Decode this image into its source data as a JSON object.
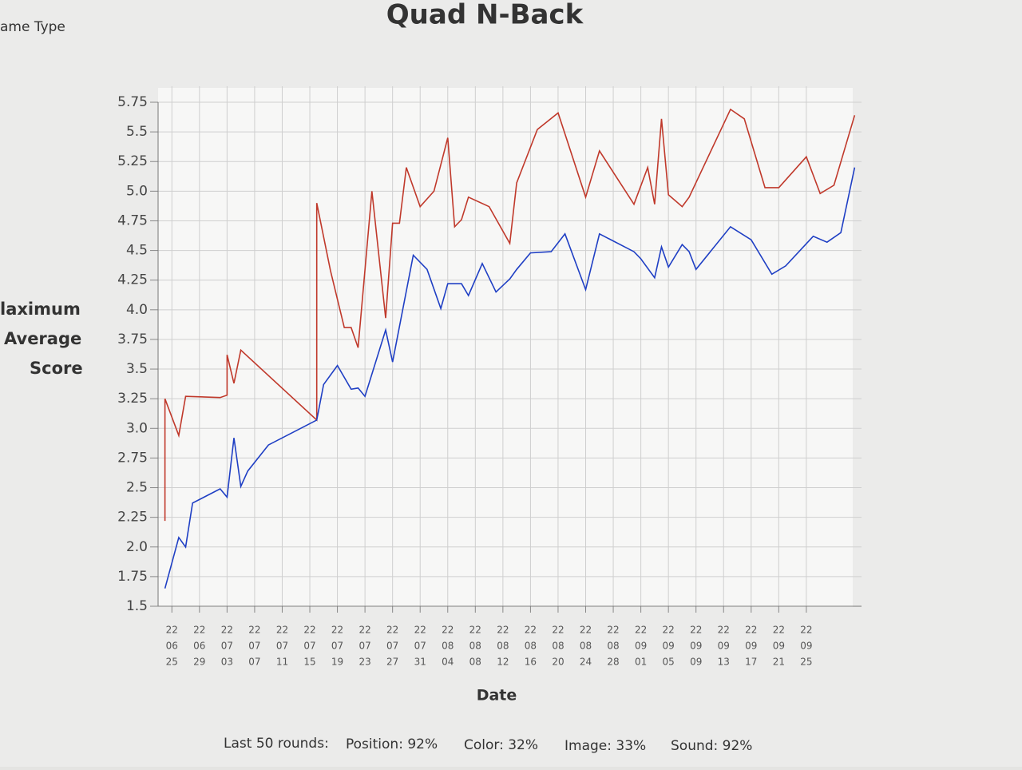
{
  "corner_label": "ame Type",
  "chart_data": {
    "type": "line",
    "title": "Quad N-Back",
    "x_label": "Date",
    "y_label": "Score",
    "grid": true,
    "xlim": [
      "22-06-23",
      "22-10-03"
    ],
    "ylim": [
      1.5,
      5.75
    ],
    "yticks": [
      1.5,
      1.75,
      {
        "value": 2,
        "label": "2.0"
      },
      2.25,
      2.5,
      2.75,
      {
        "value": 3,
        "label": "3.0"
      },
      3.25,
      3.5,
      3.75,
      {
        "value": 4,
        "label": "4.0"
      },
      4.25,
      4.5,
      4.75,
      {
        "value": 5,
        "label": "5.0"
      },
      5.25,
      5.5,
      5.75
    ],
    "xticks": [
      {
        "value": "22-06-25",
        "label": [
          "22",
          "06",
          "25"
        ]
      },
      {
        "value": "22-06-29",
        "label": [
          "22",
          "06",
          "29"
        ]
      },
      {
        "value": "22-07-03",
        "label": [
          "22",
          "07",
          "03"
        ]
      },
      {
        "value": "22-07-07",
        "label": [
          "22",
          "07",
          "07"
        ]
      },
      {
        "value": "22-07-11",
        "label": [
          "22",
          "07",
          "11"
        ]
      },
      {
        "value": "22-07-15",
        "label": [
          "22",
          "07",
          "15"
        ]
      },
      {
        "value": "22-07-19",
        "label": [
          "22",
          "07",
          "19"
        ]
      },
      {
        "value": "22-07-23",
        "label": [
          "22",
          "07",
          "23"
        ]
      },
      {
        "value": "22-07-27",
        "label": [
          "22",
          "07",
          "27"
        ]
      },
      {
        "value": "22-07-31",
        "label": [
          "22",
          "07",
          "31"
        ]
      },
      {
        "value": "22-08-04",
        "label": [
          "22",
          "08",
          "04"
        ]
      },
      {
        "value": "22-08-08",
        "label": [
          "22",
          "08",
          "08"
        ]
      },
      {
        "value": "22-08-12",
        "label": [
          "22",
          "08",
          "12"
        ]
      },
      {
        "value": "22-08-16",
        "label": [
          "22",
          "08",
          "16"
        ]
      },
      {
        "value": "22-08-20",
        "label": [
          "22",
          "08",
          "20"
        ]
      },
      {
        "value": "22-08-24",
        "label": [
          "22",
          "08",
          "24"
        ]
      },
      {
        "value": "22-08-28",
        "label": [
          "22",
          "08",
          "28"
        ]
      },
      {
        "value": "22-09-01",
        "label": [
          "22",
          "09",
          "01"
        ]
      },
      {
        "value": "22-09-05",
        "label": [
          "22",
          "09",
          "05"
        ]
      },
      {
        "value": "22-09-09",
        "label": [
          "22",
          "09",
          "09"
        ]
      },
      {
        "value": "22-09-13",
        "label": [
          "22",
          "09",
          "13"
        ]
      },
      {
        "value": "22-09-17",
        "label": [
          "22",
          "09",
          "17"
        ]
      },
      {
        "value": "22-09-21",
        "label": [
          "22",
          "09",
          "21"
        ]
      },
      {
        "value": "22-09-25",
        "label": [
          "22",
          "09",
          "25"
        ]
      }
    ],
    "series": [
      {
        "name": "laximum",
        "color": "#c0392b",
        "x": [
          "22-06-24",
          "22-06-24",
          "22-06-26",
          "22-06-27",
          "22-07-02",
          "22-07-03",
          "22-07-03",
          "22-07-04",
          "22-07-05",
          "22-07-16",
          "22-07-16",
          "22-07-18",
          "22-07-20",
          "22-07-21",
          "22-07-22",
          "22-07-24",
          "22-07-26",
          "22-07-27",
          "22-07-28",
          "22-07-29",
          "22-07-31",
          "22-08-02",
          "22-08-04",
          "22-08-05",
          "22-08-06",
          "22-08-07",
          "22-08-10",
          "22-08-13",
          "22-08-14",
          "22-08-17",
          "22-08-20",
          "22-08-24",
          "22-08-26",
          "22-08-31",
          "22-09-02",
          "22-09-03",
          "22-09-04",
          "22-09-05",
          "22-09-07",
          "22-09-08",
          "22-09-14",
          "22-09-16",
          "22-09-19",
          "22-09-21",
          "22-09-25",
          "22-09-27",
          "22-09-29",
          "22-10-02"
        ],
        "values": [
          2.22,
          3.25,
          2.94,
          3.27,
          3.26,
          3.28,
          3.62,
          3.38,
          3.66,
          3.07,
          4.9,
          4.33,
          3.85,
          3.85,
          3.68,
          5.0,
          3.93,
          4.73,
          4.73,
          5.2,
          4.87,
          5.0,
          5.45,
          4.7,
          4.76,
          4.95,
          4.87,
          4.56,
          5.07,
          5.52,
          5.66,
          4.95,
          5.34,
          4.89,
          5.2,
          4.89,
          5.61,
          4.97,
          4.87,
          4.95,
          5.69,
          5.61,
          5.03,
          5.03,
          5.29,
          4.98,
          5.05,
          5.64
        ]
      },
      {
        "name": "Average",
        "color": "#1f3fc4",
        "x": [
          "22-06-24",
          "22-06-26",
          "22-06-27",
          "22-06-28",
          "22-07-02",
          "22-07-03",
          "22-07-04",
          "22-07-05",
          "22-07-06",
          "22-07-09",
          "22-07-16",
          "22-07-17",
          "22-07-19",
          "22-07-21",
          "22-07-22",
          "22-07-23",
          "22-07-26",
          "22-07-27",
          "22-07-30",
          "22-08-01",
          "22-08-03",
          "22-08-04",
          "22-08-06",
          "22-08-07",
          "22-08-09",
          "22-08-11",
          "22-08-13",
          "22-08-14",
          "22-08-16",
          "22-08-19",
          "22-08-21",
          "22-08-24",
          "22-08-26",
          "22-08-31",
          "22-09-01",
          "22-09-03",
          "22-09-04",
          "22-09-05",
          "22-09-07",
          "22-09-08",
          "22-09-09",
          "22-09-14",
          "22-09-17",
          "22-09-20",
          "22-09-22",
          "22-09-26",
          "22-09-28",
          "22-09-30",
          "22-10-02"
        ],
        "values": [
          1.65,
          2.08,
          2.0,
          2.37,
          2.49,
          2.42,
          2.92,
          2.51,
          2.64,
          2.86,
          3.07,
          3.37,
          3.53,
          3.33,
          3.34,
          3.27,
          3.83,
          3.56,
          4.46,
          4.34,
          4.01,
          4.22,
          4.22,
          4.12,
          4.39,
          4.15,
          4.26,
          4.34,
          4.48,
          4.49,
          4.64,
          4.17,
          4.64,
          4.49,
          4.43,
          4.27,
          4.53,
          4.36,
          4.55,
          4.49,
          4.34,
          4.7,
          4.59,
          4.3,
          4.37,
          4.62,
          4.57,
          4.65,
          5.2
        ]
      }
    ]
  },
  "footer": {
    "label": "Last 50 rounds:",
    "items": [
      "Position: 92%",
      "Color: 32%",
      "Image: 33%",
      "Sound: 92%"
    ]
  }
}
